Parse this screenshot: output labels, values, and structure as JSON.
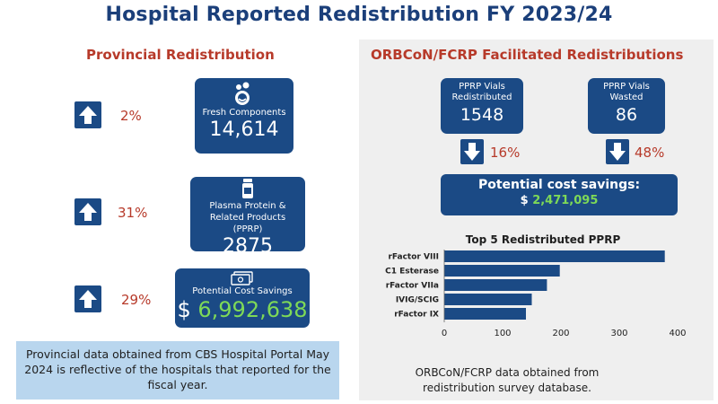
{
  "title": "Hospital Reported Redistribution FY 2023/24",
  "provincial": {
    "heading": "Provincial Redistribution",
    "fresh": {
      "change": "2%",
      "label": "Fresh Components",
      "value": "14,614"
    },
    "pprp": {
      "change": "31%",
      "label": "Plasma Protein & Related Products (PPRP)",
      "value": "2875"
    },
    "savings": {
      "change": "29%",
      "label": "Potential Cost Savings",
      "currency": "$",
      "value": "6,992,638"
    },
    "note": "Provincial data obtained from CBS Hospital Portal May 2024 is reflective of the hospitals that reported for the fiscal year."
  },
  "orbcon": {
    "heading": "ORBCoN/FCRP Facilitated Redistributions",
    "redistributed": {
      "label": "PPRP Vials Redistributed",
      "value": "1548",
      "change": "16%"
    },
    "wasted": {
      "label": "PPRP Vials Wasted",
      "value": "86",
      "change": "48%"
    },
    "savings": {
      "label": "Potential cost savings:",
      "currency": "$",
      "value": "2,471,095"
    },
    "note": "ORBCoN/FCRP data obtained from redistribution survey database."
  },
  "chart_data": {
    "type": "bar",
    "orientation": "horizontal",
    "title": "Top 5 Redistributed PPRP",
    "categories": [
      "rFactor VIII",
      "C1 Esterase",
      "rFactor VIIa",
      "IVIG/SCIG",
      "rFactor IX"
    ],
    "values": [
      378,
      198,
      176,
      150,
      140
    ],
    "xlim": [
      0,
      400
    ],
    "xticks": [
      0,
      100,
      200,
      300,
      400
    ],
    "xlabel": "",
    "ylabel": "",
    "bar_color": "#1b4a85"
  }
}
